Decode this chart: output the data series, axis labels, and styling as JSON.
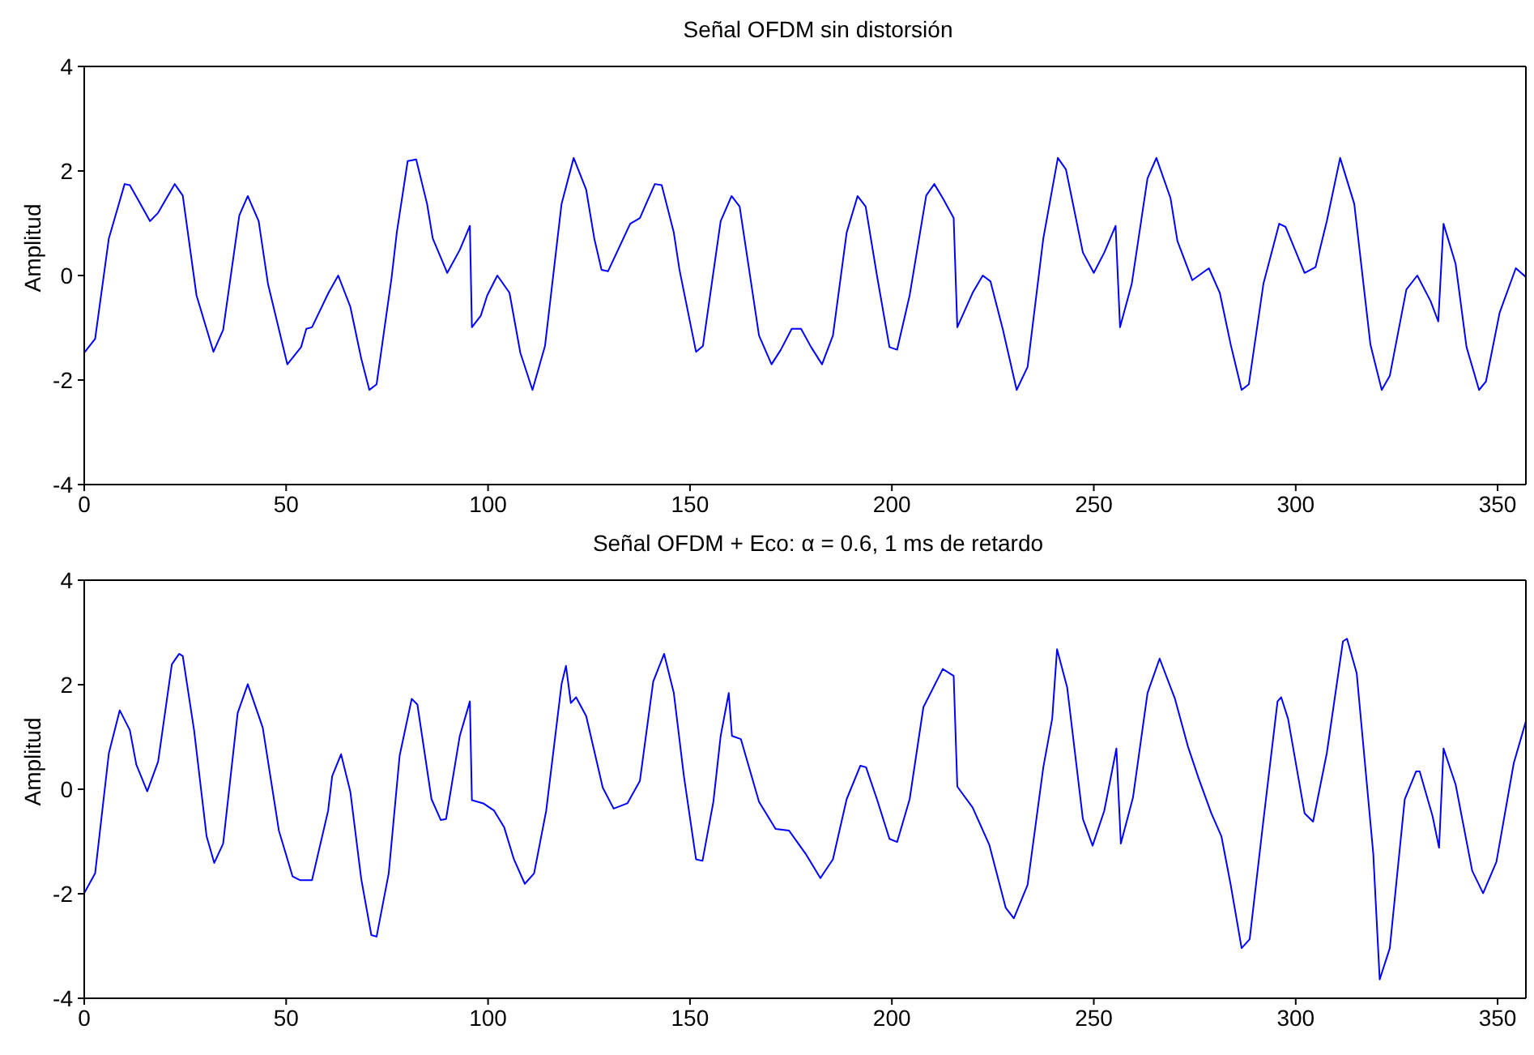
{
  "chart_data": [
    {
      "type": "line",
      "title": "Señal OFDM sin distorsión",
      "ylabel": "Amplitud",
      "xlim": [
        0,
        357
      ],
      "ylim": [
        -4,
        4
      ],
      "xticks": [
        0,
        50,
        100,
        150,
        200,
        250,
        300,
        350
      ],
      "yticks": [
        -4,
        -2,
        0,
        2,
        4
      ],
      "x": [
        0,
        2.7,
        6.1,
        10,
        11.3,
        16.3,
        18.3,
        22.4,
        24.4,
        27.8,
        32,
        34.4,
        38.4,
        40.5,
        43.2,
        45.5,
        50.3,
        53.7,
        55,
        56.4,
        60.5,
        62.9,
        65.9,
        68.6,
        70.6,
        72.4,
        76.1,
        77.4,
        80.1,
        82.2,
        84.9,
        86.3,
        89.9,
        93,
        95.5,
        96,
        98.2,
        99.8,
        102.3,
        105.3,
        108,
        111,
        114.1,
        118.2,
        121.2,
        124.3,
        126.3,
        128.1,
        129.7,
        135.2,
        137.6,
        141.3,
        143,
        146,
        147.4,
        151.5,
        153.2,
        157.6,
        160.3,
        162.3,
        167.1,
        170.2,
        172.5,
        175.2,
        177.5,
        180,
        182.7,
        185.4,
        188.8,
        191.5,
        193.5,
        196.3,
        199.4,
        201.3,
        204.4,
        208.5,
        210.5,
        212.6,
        215.3,
        216.2,
        220,
        222.5,
        224.4,
        227.5,
        230.9,
        233.6,
        237.5,
        241.1,
        243.1,
        247.3,
        250,
        252.6,
        255.4,
        256.5,
        259.4,
        263.3,
        265.5,
        269,
        270.7,
        274.4,
        278.5,
        281.2,
        283.9,
        286.6,
        288.4,
        292,
        295.9,
        297.5,
        302.2,
        304.9,
        307.7,
        311,
        314.5,
        318.5,
        321.3,
        323.3,
        327.4,
        330.1,
        333.4,
        335.3,
        336.6,
        339.6,
        342.3,
        345.4,
        347.1,
        350.5,
        354.5,
        357
      ],
      "series": [
        {
          "color": "#0000ff",
          "values": [
            -1.48,
            -1.21,
            0.71,
            1.75,
            1.73,
            1.04,
            1.2,
            1.75,
            1.53,
            -0.38,
            -1.46,
            -1.04,
            1.15,
            1.52,
            1.04,
            -0.16,
            -1.7,
            -1.37,
            -1.02,
            -0.99,
            -0.33,
            0,
            -0.6,
            -1.59,
            -2.19,
            -2.08,
            -0.05,
            0.82,
            2.19,
            2.22,
            1.37,
            0.71,
            0.05,
            0.49,
            0.95,
            -0.99,
            -0.77,
            -0.38,
            0,
            -0.33,
            -1.48,
            -2.19,
            -1.35,
            1.37,
            2.25,
            1.64,
            0.71,
            0.11,
            0.08,
            0.99,
            1.1,
            1.75,
            1.73,
            0.82,
            0.11,
            -1.46,
            -1.35,
            1.04,
            1.52,
            1.32,
            -1.15,
            -1.7,
            -1.42,
            -1.02,
            -1.02,
            -1.37,
            -1.7,
            -1.15,
            0.82,
            1.52,
            1.32,
            0,
            -1.37,
            -1.42,
            -0.38,
            1.53,
            1.75,
            1.48,
            1.1,
            -0.99,
            -0.33,
            0,
            -0.11,
            -1.04,
            -2.19,
            -1.75,
            0.71,
            2.25,
            2.03,
            0.44,
            0.05,
            0.44,
            0.95,
            -0.99,
            -0.16,
            1.86,
            2.25,
            1.48,
            0.66,
            -0.09,
            0.14,
            -0.33,
            -1.32,
            -2.19,
            -2.08,
            -0.16,
            0.99,
            0.93,
            0.05,
            0.16,
            1.04,
            2.25,
            1.37,
            -1.32,
            -2.19,
            -1.92,
            -0.27,
            0,
            -0.49,
            -0.88,
            0.99,
            0.22,
            -1.37,
            -2.19,
            -2.03,
            -0.71,
            0.14,
            -0.03
          ]
        }
      ]
    },
    {
      "type": "line",
      "title": "Señal OFDM + Eco: α = 0.6, 1 ms de retardo",
      "ylabel": "Amplitud",
      "xlim": [
        0,
        357
      ],
      "ylim": [
        -4,
        4
      ],
      "xticks": [
        0,
        50,
        100,
        150,
        200,
        250,
        300,
        350
      ],
      "yticks": [
        -4,
        -2,
        0,
        2,
        4
      ],
      "x": [
        0,
        2.7,
        6.1,
        8.8,
        11.3,
        12.9,
        15.6,
        18.3,
        21.7,
        23.5,
        24.4,
        27.2,
        30.3,
        32.2,
        34.4,
        38,
        40.5,
        44.2,
        48.2,
        51.6,
        53.4,
        56.4,
        60.4,
        61.4,
        63.6,
        65.9,
        68.6,
        71.1,
        72.4,
        75.4,
        78.1,
        81.1,
        82.5,
        86,
        88.3,
        89.6,
        93,
        95.5,
        96,
        98.8,
        101.5,
        104,
        106.4,
        109.1,
        111.4,
        114.4,
        118.2,
        119.3,
        120.5,
        121.8,
        124.3,
        128.4,
        131.1,
        134.5,
        137.6,
        140.9,
        143.6,
        146,
        148.5,
        151.5,
        153.1,
        155.8,
        157.6,
        159.6,
        160.4,
        162.6,
        167.1,
        171.2,
        174.5,
        178.6,
        182.3,
        185.4,
        188.8,
        192.2,
        193.6,
        196.3,
        199.4,
        201.3,
        204.4,
        207.8,
        212.6,
        215.3,
        216.2,
        220,
        224.1,
        228.2,
        230.2,
        233.6,
        237.5,
        239.7,
        240.9,
        243.4,
        247.3,
        249.7,
        252.6,
        255.6,
        256.7,
        259.7,
        263.3,
        266.3,
        270.1,
        273.3,
        276,
        279.1,
        281.6,
        283.9,
        286.6,
        288.6,
        291.8,
        295.5,
        296.4,
        298.1,
        302.2,
        304.3,
        307.7,
        311.7,
        312.7,
        315.1,
        319.2,
        320.8,
        323.3,
        327,
        329.8,
        330.7,
        333.9,
        335.5,
        336.6,
        339.6,
        343.7,
        346.4,
        349.7,
        354,
        357
      ],
      "series": [
        {
          "color": "#0000ff",
          "values": [
            -1.99,
            -1.61,
            0.69,
            1.51,
            1.13,
            0.47,
            -0.04,
            0.53,
            2.39,
            2.59,
            2.55,
            1.13,
            -0.9,
            -1.41,
            -1.04,
            1.46,
            2.01,
            1.18,
            -0.79,
            -1.67,
            -1.74,
            -1.74,
            -0.41,
            0.25,
            0.67,
            -0.05,
            -1.72,
            -2.79,
            -2.82,
            -1.61,
            0.64,
            1.73,
            1.62,
            -0.19,
            -0.59,
            -0.57,
            1.02,
            1.68,
            -0.21,
            -0.27,
            -0.41,
            -0.73,
            -1.34,
            -1.81,
            -1.61,
            -0.41,
            2.01,
            2.36,
            1.65,
            1.76,
            1.4,
            0.03,
            -0.37,
            -0.27,
            0.16,
            2.06,
            2.59,
            1.84,
            0.25,
            -1.34,
            -1.37,
            -0.24,
            1.02,
            1.84,
            1.02,
            0.96,
            -0.24,
            -0.76,
            -0.79,
            -1.23,
            -1.7,
            -1.34,
            -0.19,
            0.45,
            0.42,
            -0.19,
            -0.95,
            -1.01,
            -0.19,
            1.57,
            2.3,
            2.17,
            0.05,
            -0.35,
            -1.06,
            -2.27,
            -2.47,
            -1.83,
            0.42,
            1.35,
            2.68,
            1.95,
            -0.57,
            -1.08,
            -0.41,
            0.78,
            -1.04,
            -0.16,
            1.84,
            2.5,
            1.73,
            0.82,
            0.2,
            -0.46,
            -0.9,
            -1.83,
            -3.04,
            -2.87,
            -0.73,
            1.68,
            1.76,
            1.35,
            -0.46,
            -0.62,
            0.69,
            2.83,
            2.88,
            2.22,
            -1.23,
            -3.64,
            -3.04,
            -0.19,
            0.34,
            0.34,
            -0.52,
            -1.12,
            0.78,
            0.09,
            -1.56,
            -1.99,
            -1.39,
            0.5,
            1.3
          ]
        }
      ]
    }
  ]
}
